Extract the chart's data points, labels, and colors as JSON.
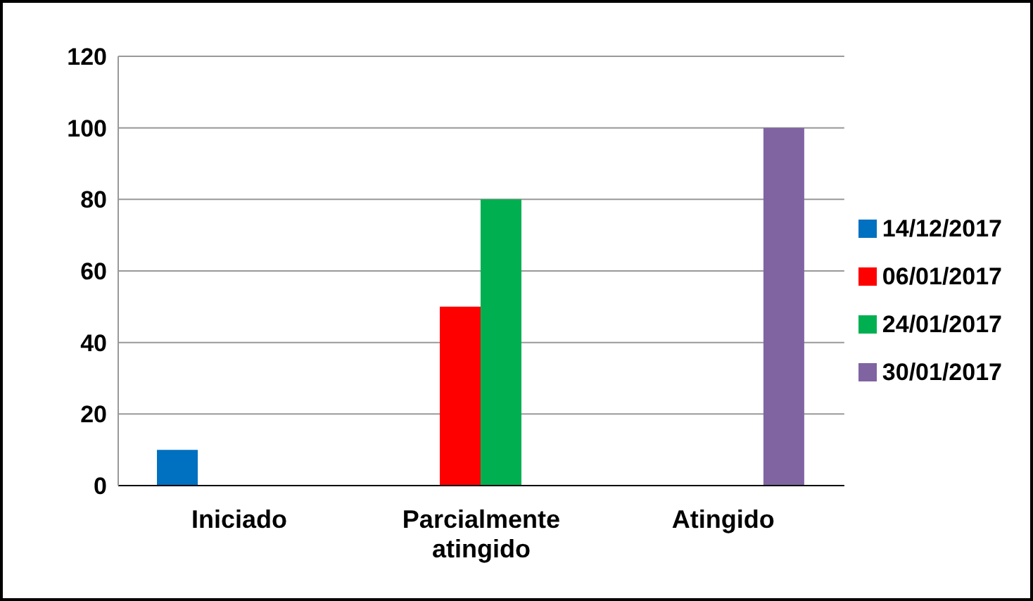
{
  "chart_data": {
    "type": "bar",
    "categories": [
      "Iniciado",
      "Parcialmente atingido",
      "Atingido"
    ],
    "series": [
      {
        "name": "14/12/2017",
        "color": "#0070c0",
        "values": [
          10,
          null,
          null
        ]
      },
      {
        "name": "06/01/2017",
        "color": "#ff0000",
        "values": [
          null,
          50,
          null
        ]
      },
      {
        "name": "24/01/2017",
        "color": "#00b050",
        "values": [
          null,
          80,
          null
        ]
      },
      {
        "name": "30/01/2017",
        "color": "#8064a2",
        "values": [
          null,
          null,
          100
        ]
      }
    ],
    "ylim": [
      0,
      120
    ],
    "yticks": [
      0,
      20,
      40,
      60,
      80,
      100,
      120
    ],
    "grid": "y",
    "legend": "right"
  }
}
